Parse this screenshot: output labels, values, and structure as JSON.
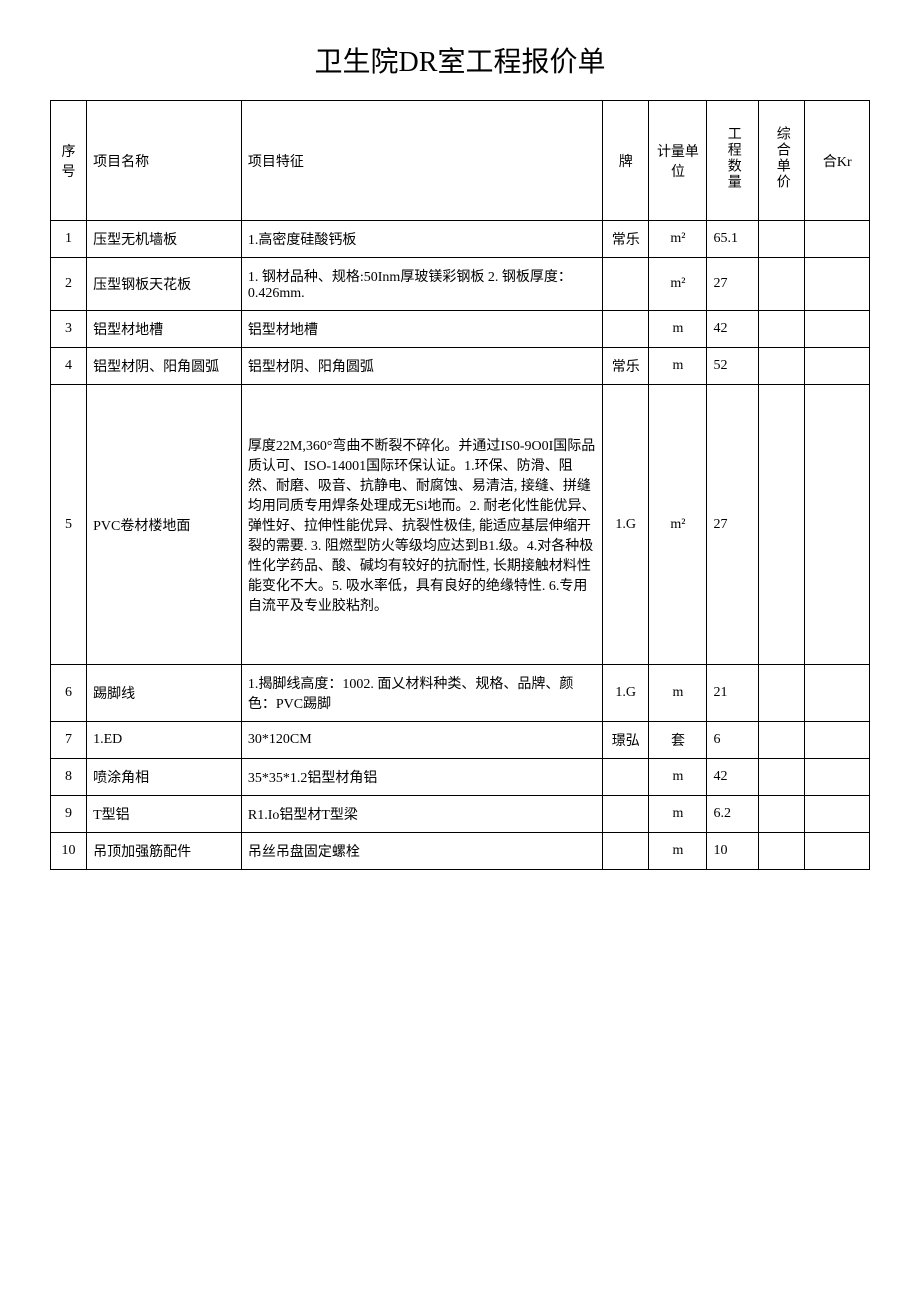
{
  "document": {
    "title": "卫生院DR室工程报价单",
    "columns": {
      "seq": "序号",
      "name": "项目名称",
      "feature": "项目特征",
      "brand": "牌",
      "unit": "计量单位",
      "qty": "工程数量",
      "price": "综合单价",
      "total": "合Kr"
    },
    "rows": [
      {
        "seq": "1",
        "name": "压型无机墙板",
        "feature": "1.高密度硅酸钙板",
        "brand": "常乐",
        "unit": "m²",
        "qty": "65.1",
        "price": "",
        "total": ""
      },
      {
        "seq": "2",
        "name": "压型钢板天花板",
        "feature": "1. 钢材品种、规格:50Inm厚玻镁彩钢板 2. 钢板厚度：0.426mm.",
        "brand": "",
        "unit": "m²",
        "qty": "27",
        "price": "",
        "total": ""
      },
      {
        "seq": "3",
        "name": "铝型材地槽",
        "feature": "铝型材地槽",
        "brand": "",
        "unit": "m",
        "qty": "42",
        "price": "",
        "total": ""
      },
      {
        "seq": "4",
        "name": " 铝型材阴、阳角圆弧",
        "feature": "铝型材阴、阳角圆弧",
        "brand": "常乐",
        "unit": "m",
        "qty": "52",
        "price": "",
        "total": ""
      },
      {
        "seq": "5",
        "name": "PVC卷材楼地面",
        "feature": " 厚度22M,360°弯曲不断裂不碎化。并通过IS0-9O0I国际品质认可、ISO-14001国际环保认证。1.环保、防滑、阻然、耐磨、吸音、抗静电、耐腐蚀、易清洁, 接缝、拼缝均用同质专用焊条处理成无Si地而。2. 耐老化性能优异、弹性好、拉伸性能优异、抗裂性极佳, 能适应基层伸缩开裂的需要. 3. 阻燃型防火等级均应达到B1.级。4.对各种极性化学药品、酸、碱均有较好的抗耐性, 长期接触材料性能变化不大。5. 吸水率低，具有良好的绝缘特性. 6.专用自流平及专业胶粘剂。",
        "brand": "1.G",
        "unit": "m²",
        "qty": "27",
        "price": "",
        "total": ""
      },
      {
        "seq": "6",
        "name": "踢脚线",
        "feature": " 1.揭脚线高度：1002. 面乂材料种类、规格、品牌、颜色：PVC踢脚",
        "brand": "1.G",
        "unit": "m",
        "qty": "21",
        "price": "",
        "total": ""
      },
      {
        "seq": "7",
        "name": "1.ED",
        "feature": "30*120CM",
        "brand": "璟弘",
        "unit": "套",
        "qty": "6",
        "price": "",
        "total": ""
      },
      {
        "seq": "8",
        "name": "喷涂角相",
        "feature": "35*35*1.2铝型材角铝",
        "brand": "",
        "unit": "m",
        "qty": "42",
        "price": "",
        "total": ""
      },
      {
        "seq": "9",
        "name": "T型铝",
        "feature": "R1.Io铝型材T型梁",
        "brand": "",
        "unit": "m",
        "qty": "6.2",
        "price": "",
        "total": ""
      },
      {
        "seq": "10",
        "name": "吊顶加强筋配件",
        "feature": "吊丝吊盘固定螺栓",
        "brand": "",
        "unit": "m",
        "qty": "10",
        "price": "",
        "total": ""
      }
    ]
  }
}
